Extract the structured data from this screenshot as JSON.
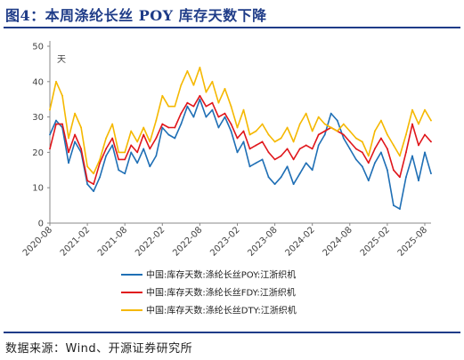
{
  "header": {
    "title": "图4：本周涤纶长丝 POY 库存天数下降"
  },
  "footer": {
    "source": "数据来源：Wind、开源证券研究所"
  },
  "chart_data": {
    "type": "line",
    "title": "图4：本周涤纶长丝 POY 库存天数下降",
    "ylabel": "天",
    "xlabel": "",
    "ylim": [
      0,
      50
    ],
    "yticks": [
      0,
      10,
      20,
      30,
      40,
      50
    ],
    "xlim": [
      "2020-08",
      "2025-09"
    ],
    "xticks": [
      "2020-08",
      "2021-02",
      "2021-08",
      "2022-02",
      "2022-08",
      "2023-02",
      "2023-08",
      "2024-02",
      "2024-08",
      "2025-02",
      "2025-08"
    ],
    "grid": false,
    "legend_position": "bottom",
    "x": [
      "2020-08",
      "2020-09",
      "2020-10",
      "2020-11",
      "2020-12",
      "2021-01",
      "2021-02",
      "2021-03",
      "2021-04",
      "2021-05",
      "2021-06",
      "2021-07",
      "2021-08",
      "2021-09",
      "2021-10",
      "2021-11",
      "2021-12",
      "2022-01",
      "2022-02",
      "2022-03",
      "2022-04",
      "2022-05",
      "2022-06",
      "2022-07",
      "2022-08",
      "2022-09",
      "2022-10",
      "2022-11",
      "2022-12",
      "2023-01",
      "2023-02",
      "2023-03",
      "2023-04",
      "2023-05",
      "2023-06",
      "2023-07",
      "2023-08",
      "2023-09",
      "2023-10",
      "2023-11",
      "2023-12",
      "2024-01",
      "2024-02",
      "2024-03",
      "2024-04",
      "2024-05",
      "2024-06",
      "2024-07",
      "2024-08",
      "2024-09",
      "2024-10",
      "2024-11",
      "2024-12",
      "2025-01",
      "2025-02",
      "2025-03",
      "2025-04",
      "2025-05",
      "2025-06",
      "2025-07",
      "2025-08",
      "2025-09"
    ],
    "series": [
      {
        "name": "中国:库存天数:涤纶长丝POY:江浙织机",
        "color": "#1f6fb5",
        "values": [
          25,
          29,
          27,
          17,
          23,
          20,
          11,
          9,
          13,
          19,
          22,
          15,
          14,
          20,
          17,
          21,
          16,
          19,
          27,
          25,
          24,
          28,
          33,
          30,
          35,
          30,
          32,
          27,
          30,
          26,
          20,
          23,
          16,
          17,
          18,
          13,
          11,
          13,
          16,
          11,
          14,
          17,
          15,
          22,
          25,
          31,
          29,
          24,
          21,
          18,
          16,
          12,
          17,
          20,
          15,
          5,
          4,
          13,
          19,
          12,
          20,
          14
        ]
      },
      {
        "name": "中国:库存天数:涤纶长丝FDY:江浙织机",
        "color": "#e0161b",
        "values": [
          21,
          28,
          28,
          20,
          25,
          21,
          12,
          11,
          17,
          21,
          24,
          18,
          18,
          22,
          20,
          25,
          21,
          24,
          28,
          27,
          27,
          31,
          34,
          33,
          36,
          33,
          34,
          30,
          31,
          28,
          24,
          26,
          21,
          22,
          23,
          20,
          18,
          19,
          21,
          18,
          21,
          22,
          21,
          25,
          26,
          27,
          26,
          25,
          23,
          21,
          20,
          17,
          21,
          24,
          21,
          15,
          13,
          20,
          28,
          22,
          25,
          23
        ]
      },
      {
        "name": "中国:库存天数:涤纶长丝DTY:江浙织机",
        "color": "#f5b800",
        "values": [
          32,
          40,
          36,
          24,
          31,
          27,
          16,
          14,
          18,
          24,
          28,
          20,
          20,
          26,
          23,
          27,
          23,
          29,
          36,
          33,
          33,
          39,
          43,
          39,
          44,
          37,
          40,
          34,
          38,
          33,
          27,
          32,
          25,
          26,
          28,
          25,
          23,
          24,
          27,
          23,
          28,
          31,
          26,
          30,
          28,
          27,
          26,
          28,
          26,
          24,
          23,
          19,
          26,
          29,
          25,
          22,
          19,
          25,
          32,
          28,
          32,
          29
        ]
      }
    ]
  }
}
